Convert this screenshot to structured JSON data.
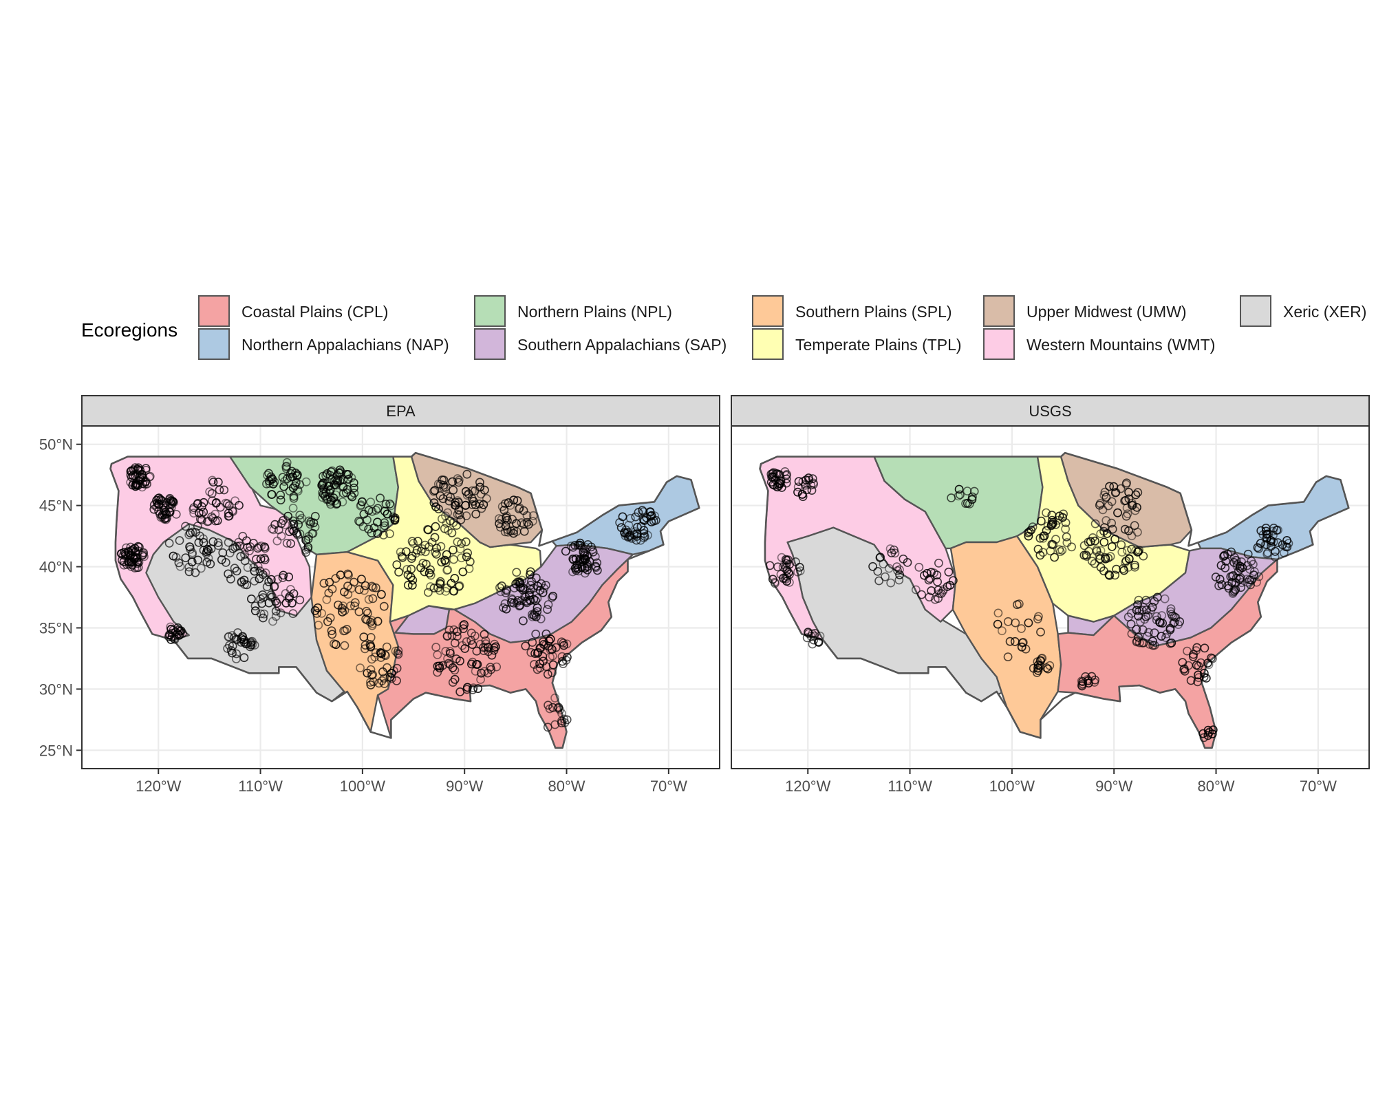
{
  "legend": {
    "title": "Ecoregions",
    "items": [
      {
        "code": "CPL",
        "label": "Coastal Plains (CPL)",
        "color": "#F4A3A3"
      },
      {
        "code": "NAP",
        "label": "Northern Appalachians (NAP)",
        "color": "#ADC9E2"
      },
      {
        "code": "NPL",
        "label": "Northern Plains (NPL)",
        "color": "#B6DEB6"
      },
      {
        "code": "SAP",
        "label": "Southern Appalachians (SAP)",
        "color": "#D2B6DA"
      },
      {
        "code": "SPL",
        "label": "Southern Plains (SPL)",
        "color": "#FEC998"
      },
      {
        "code": "TPL",
        "label": "Temperate Plains (TPL)",
        "color": "#FFFFB3"
      },
      {
        "code": "UMW",
        "label": "Upper Midwest (UMW)",
        "color": "#D9BCA8"
      },
      {
        "code": "WMT",
        "label": "Western Mountains (WMT)",
        "color": "#FDCCE5"
      },
      {
        "code": "XER",
        "label": "Xeric (XER)",
        "color": "#D9D9D9"
      }
    ]
  },
  "panels": [
    {
      "title": "EPA"
    },
    {
      "title": "USGS"
    }
  ],
  "axes": {
    "x_ticks": [
      "120°W",
      "110°W",
      "100°W",
      "90°W",
      "80°W",
      "70°W"
    ],
    "y_ticks": [
      "25°N",
      "30°N",
      "35°N",
      "40°N",
      "45°N",
      "50°N"
    ]
  },
  "chart_data": {
    "type": "scatter",
    "panels": [
      "EPA",
      "USGS"
    ],
    "xlim": [
      -127.5,
      -65
    ],
    "ylim": [
      23.5,
      51.5
    ],
    "x_tick_values": [
      -120,
      -110,
      -100,
      -90,
      -80,
      -70
    ],
    "y_tick_values": [
      25,
      30,
      35,
      40,
      45,
      50
    ],
    "grid": true,
    "legend_position": "top",
    "sites_cluster_summary": {
      "EPA": [
        {
          "lon": -121.8,
          "lat": 47.3,
          "n": 40,
          "spread": 0.9
        },
        {
          "lon": -119.3,
          "lat": 44.8,
          "n": 45,
          "spread": 1.0
        },
        {
          "lon": -122.5,
          "lat": 40.8,
          "n": 50,
          "spread": 1.0
        },
        {
          "lon": -116.5,
          "lat": 41.5,
          "n": 40,
          "spread": 2.0
        },
        {
          "lon": -114.5,
          "lat": 45.5,
          "n": 40,
          "spread": 2.0
        },
        {
          "lon": -111.5,
          "lat": 40.5,
          "n": 45,
          "spread": 2.0
        },
        {
          "lon": -108.5,
          "lat": 37.5,
          "n": 40,
          "spread": 2.0
        },
        {
          "lon": -106.5,
          "lat": 43.0,
          "n": 40,
          "spread": 2.0
        },
        {
          "lon": -112.0,
          "lat": 33.5,
          "n": 30,
          "spread": 1.2
        },
        {
          "lon": -118.5,
          "lat": 34.6,
          "n": 22,
          "spread": 0.7
        },
        {
          "lon": -102.5,
          "lat": 46.5,
          "n": 65,
          "spread": 1.5
        },
        {
          "lon": -107.5,
          "lat": 47.0,
          "n": 40,
          "spread": 1.6
        },
        {
          "lon": -98.5,
          "lat": 44.0,
          "n": 35,
          "spread": 1.8
        },
        {
          "lon": -101.5,
          "lat": 36.5,
          "n": 60,
          "spread": 3.0
        },
        {
          "lon": -98.5,
          "lat": 32.0,
          "n": 40,
          "spread": 2.0
        },
        {
          "lon": -93.0,
          "lat": 40.5,
          "n": 80,
          "spread": 3.0
        },
        {
          "lon": -90.5,
          "lat": 45.5,
          "n": 60,
          "spread": 2.2
        },
        {
          "lon": -85.0,
          "lat": 44.0,
          "n": 35,
          "spread": 1.5
        },
        {
          "lon": -84.0,
          "lat": 37.5,
          "n": 70,
          "spread": 2.2
        },
        {
          "lon": -78.5,
          "lat": 40.5,
          "n": 50,
          "spread": 1.5
        },
        {
          "lon": -73.0,
          "lat": 43.5,
          "n": 45,
          "spread": 1.5
        },
        {
          "lon": -90.0,
          "lat": 32.5,
          "n": 70,
          "spread": 2.8
        },
        {
          "lon": -82.0,
          "lat": 33.0,
          "n": 40,
          "spread": 1.8
        },
        {
          "lon": -81.2,
          "lat": 28.0,
          "n": 15,
          "spread": 1.3
        }
      ],
      "USGS": [
        {
          "lon": -122.8,
          "lat": 47.2,
          "n": 30,
          "spread": 0.8
        },
        {
          "lon": -120.0,
          "lat": 46.5,
          "n": 18,
          "spread": 0.9
        },
        {
          "lon": -122.3,
          "lat": 39.5,
          "n": 30,
          "spread": 1.3
        },
        {
          "lon": -119.5,
          "lat": 34.2,
          "n": 12,
          "spread": 0.6
        },
        {
          "lon": -112.0,
          "lat": 40.0,
          "n": 20,
          "spread": 1.5
        },
        {
          "lon": -107.5,
          "lat": 39.0,
          "n": 25,
          "spread": 1.8
        },
        {
          "lon": -104.8,
          "lat": 45.8,
          "n": 12,
          "spread": 1.0
        },
        {
          "lon": -96.0,
          "lat": 42.5,
          "n": 40,
          "spread": 2.0
        },
        {
          "lon": -90.0,
          "lat": 41.5,
          "n": 60,
          "spread": 2.5
        },
        {
          "lon": -89.5,
          "lat": 45.5,
          "n": 30,
          "spread": 1.6
        },
        {
          "lon": -86.0,
          "lat": 35.5,
          "n": 60,
          "spread": 2.2
        },
        {
          "lon": -78.0,
          "lat": 39.5,
          "n": 55,
          "spread": 1.8
        },
        {
          "lon": -74.5,
          "lat": 42.0,
          "n": 35,
          "spread": 1.3
        },
        {
          "lon": -97.0,
          "lat": 32.0,
          "n": 15,
          "spread": 0.8
        },
        {
          "lon": -92.5,
          "lat": 30.5,
          "n": 12,
          "spread": 0.6
        },
        {
          "lon": -82.0,
          "lat": 32.0,
          "n": 25,
          "spread": 1.6
        },
        {
          "lon": -80.8,
          "lat": 26.5,
          "n": 8,
          "spread": 0.6
        },
        {
          "lon": -100.0,
          "lat": 35.0,
          "n": 20,
          "spread": 2.5
        }
      ]
    }
  }
}
